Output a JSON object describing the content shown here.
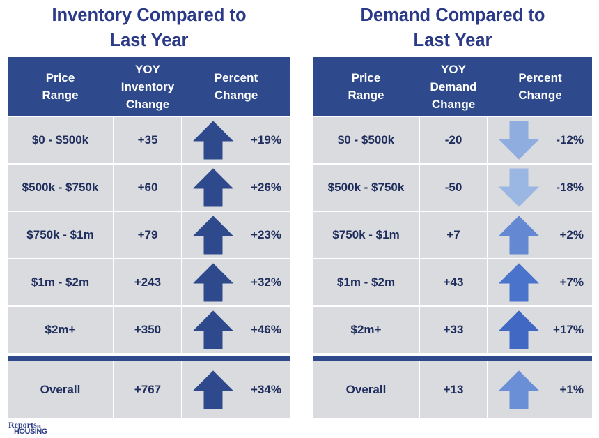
{
  "left": {
    "title_line1": "Inventory Compared to",
    "title_line2": "Last Year",
    "headers": {
      "price": [
        "Price",
        "Range"
      ],
      "yoy": [
        "YOY",
        "Inventory",
        "Change"
      ],
      "pct": [
        "Percent",
        "Change"
      ]
    },
    "rows": [
      {
        "range": "$0 - $500k",
        "yoy": "+35",
        "pct": "+19%",
        "dir": "up",
        "color": "#2e4a8c"
      },
      {
        "range": "$500k - $750k",
        "yoy": "+60",
        "pct": "+26%",
        "dir": "up",
        "color": "#2e4a8c"
      },
      {
        "range": "$750k - $1m",
        "yoy": "+79",
        "pct": "+23%",
        "dir": "up",
        "color": "#2e4a8c"
      },
      {
        "range": "$1m - $2m",
        "yoy": "+243",
        "pct": "+32%",
        "dir": "up",
        "color": "#2e4a8c"
      },
      {
        "range": "$2m+",
        "yoy": "+350",
        "pct": "+46%",
        "dir": "up",
        "color": "#2e4a8c"
      }
    ],
    "overall": {
      "range": "Overall",
      "yoy": "+767",
      "pct": "+34%",
      "dir": "up",
      "color": "#2e4a8c"
    }
  },
  "right": {
    "title_line1": "Demand Compared to",
    "title_line2": "Last Year",
    "headers": {
      "price": [
        "Price",
        "Range"
      ],
      "yoy": [
        "YOY",
        "Demand",
        "Change"
      ],
      "pct": [
        "Percent",
        "Change"
      ]
    },
    "rows": [
      {
        "range": "$0 - $500k",
        "yoy": "-20",
        "pct": "-12%",
        "dir": "down",
        "color": "#8fadde"
      },
      {
        "range": "$500k - $750k",
        "yoy": "-50",
        "pct": "-18%",
        "dir": "down",
        "color": "#9ab6e3"
      },
      {
        "range": "$750k - $1m",
        "yoy": "+7",
        "pct": "+2%",
        "dir": "up",
        "color": "#6488d2"
      },
      {
        "range": "$1m - $2m",
        "yoy": "+43",
        "pct": "+7%",
        "dir": "up",
        "color": "#4a73cc"
      },
      {
        "range": "$2m+",
        "yoy": "+33",
        "pct": "+17%",
        "dir": "up",
        "color": "#4169c4"
      }
    ],
    "overall": {
      "range": "Overall",
      "yoy": "+13",
      "pct": "+1%",
      "dir": "up",
      "color": "#6b8fd6"
    }
  },
  "logo": {
    "word1": "Reports",
    "word_on": "on",
    "word2": "HOUSING"
  }
}
